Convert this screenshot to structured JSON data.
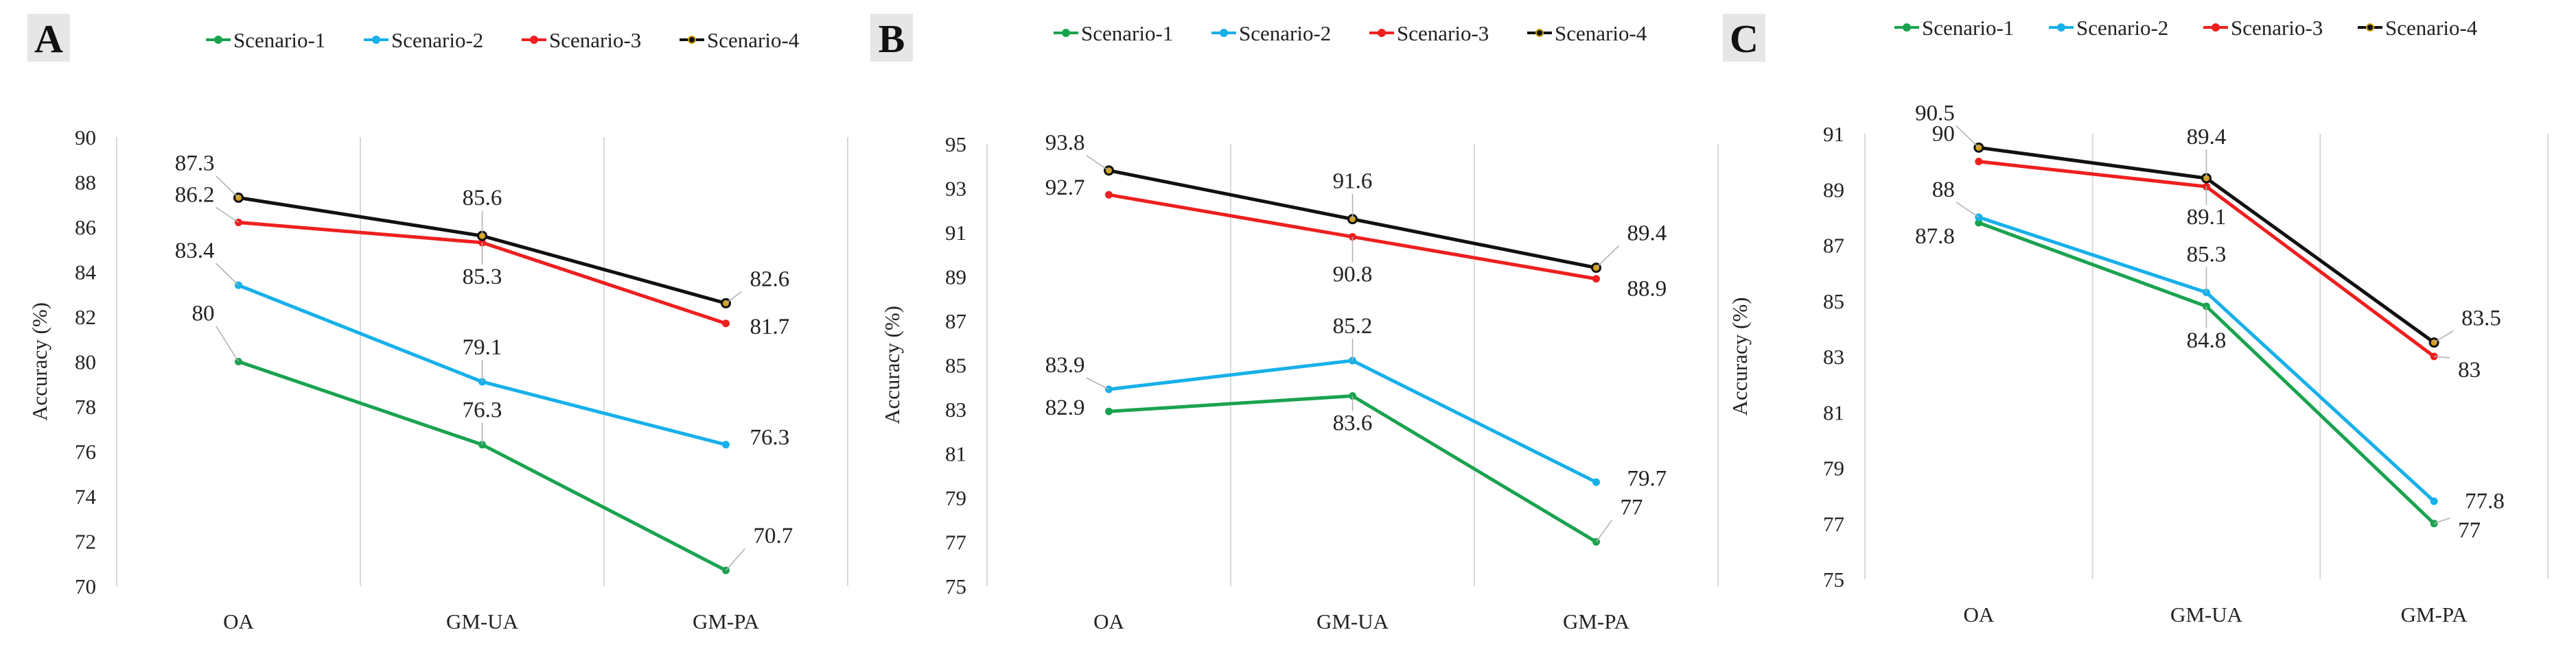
{
  "figure": {
    "background": "#ffffff"
  },
  "colors": {
    "Scenario-1": "#1aa34f",
    "Scenario-2": "#17b0ea",
    "Scenario-3": "#ee1f1f",
    "Scenario-4": "#111111",
    "gridline": "#d9d9d9",
    "panel_badge": "#e6e6e6",
    "leader": "#b0b0b0"
  },
  "chart_data": [
    {
      "panel": "A",
      "type": "line",
      "categories": [
        "OA",
        "GM-UA",
        "GM-PA"
      ],
      "series": [
        {
          "name": "Scenario-1",
          "values": [
            80,
            76.3,
            70.7
          ],
          "labels": [
            "80",
            "76.3",
            "70.7"
          ]
        },
        {
          "name": "Scenario-2",
          "values": [
            83.4,
            79.1,
            76.3
          ],
          "labels": [
            "83.4",
            "79.1",
            "76.3"
          ]
        },
        {
          "name": "Scenario-3",
          "values": [
            86.2,
            85.3,
            81.7
          ],
          "labels": [
            "86.2",
            "85.3",
            "81.7"
          ]
        },
        {
          "name": "Scenario-4",
          "values": [
            87.3,
            85.6,
            82.6
          ],
          "labels": [
            "87.3",
            "85.6",
            "82.6"
          ]
        }
      ],
      "ylabel": "Accuracy (%)",
      "ylim": [
        70,
        90
      ],
      "yticks": [
        "70",
        "72",
        "74",
        "76",
        "78",
        "80",
        "82",
        "84",
        "86",
        "88",
        "90"
      ],
      "grid": "vertical",
      "legend": "top"
    },
    {
      "panel": "B",
      "type": "line",
      "categories": [
        "OA",
        "GM-UA",
        "GM-PA"
      ],
      "series": [
        {
          "name": "Scenario-1",
          "values": [
            82.9,
            83.6,
            77
          ],
          "labels": [
            "82.9",
            "83.6",
            "77"
          ]
        },
        {
          "name": "Scenario-2",
          "values": [
            83.9,
            85.2,
            79.7
          ],
          "labels": [
            "83.9",
            "85.2",
            "79.7"
          ]
        },
        {
          "name": "Scenario-3",
          "values": [
            92.7,
            90.8,
            88.9
          ],
          "labels": [
            "92.7",
            "90.8",
            "88.9"
          ]
        },
        {
          "name": "Scenario-4",
          "values": [
            93.8,
            91.6,
            89.4
          ],
          "labels": [
            "93.8",
            "91.6",
            "89.4"
          ]
        }
      ],
      "ylabel": "Accuracy (%)",
      "ylim": [
        75,
        95
      ],
      "yticks": [
        "75",
        "77",
        "79",
        "81",
        "83",
        "85",
        "87",
        "89",
        "91",
        "93",
        "95"
      ],
      "grid": "vertical",
      "legend": "top"
    },
    {
      "panel": "C",
      "type": "line",
      "categories": [
        "OA",
        "GM-UA",
        "GM-PA"
      ],
      "series": [
        {
          "name": "Scenario-1",
          "values": [
            87.8,
            84.8,
            77
          ],
          "labels": [
            "87.8",
            "84.8",
            "77"
          ]
        },
        {
          "name": "Scenario-2",
          "values": [
            88,
            85.3,
            77.8
          ],
          "labels": [
            "88",
            "85.3",
            "77.8"
          ]
        },
        {
          "name": "Scenario-3",
          "values": [
            90,
            89.1,
            83
          ],
          "labels": [
            "90",
            "89.1",
            "83"
          ]
        },
        {
          "name": "Scenario-4",
          "values": [
            90.5,
            89.4,
            83.5
          ],
          "labels": [
            "90.5",
            "89.4",
            "83.5"
          ]
        }
      ],
      "ylabel": "Accuracy (%)",
      "ylim": [
        75,
        91
      ],
      "yticks": [
        "75",
        "77",
        "79",
        "81",
        "83",
        "85",
        "87",
        "89",
        "91"
      ],
      "grid": "vertical",
      "legend": "top"
    }
  ]
}
